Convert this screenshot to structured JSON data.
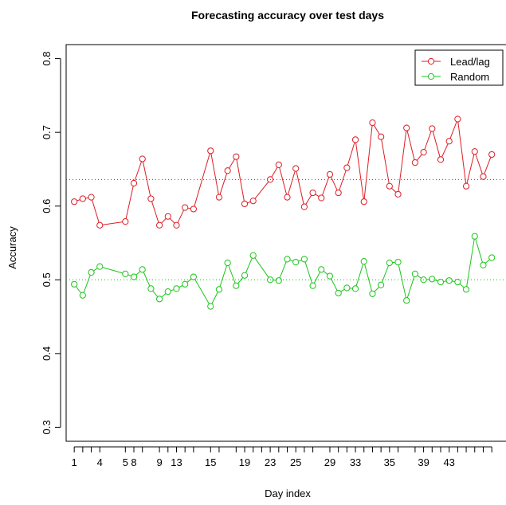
{
  "chart_data": {
    "type": "line",
    "title": "Forecasting accuracy over test days",
    "xlabel": "Day index",
    "ylabel": "Accuracy",
    "ylim": [
      0.3,
      0.8
    ],
    "y_ticks": [
      0.3,
      0.4,
      0.5,
      0.6,
      0.7,
      0.8
    ],
    "x_tick_positions": [
      1,
      2,
      3,
      4,
      7,
      8,
      9,
      11,
      12,
      13,
      14,
      15,
      17,
      18,
      20,
      21,
      22,
      23,
      24,
      25,
      26,
      27,
      28,
      29,
      31,
      32,
      33,
      34,
      35,
      36,
      37,
      38,
      39,
      41,
      42,
      43,
      44,
      45,
      46,
      47,
      48,
      49,
      50
    ],
    "x_tick_labels": [
      {
        "x": 1,
        "label": "1"
      },
      {
        "x": 4,
        "label": "4"
      },
      {
        "x": 7,
        "label": "5"
      },
      {
        "x": 8,
        "label": "8"
      },
      {
        "x": 11,
        "label": "9"
      },
      {
        "x": 13,
        "label": "13"
      },
      {
        "x": 17,
        "label": "15"
      },
      {
        "x": 21,
        "label": "19"
      },
      {
        "x": 24,
        "label": "23"
      },
      {
        "x": 27,
        "label": "25"
      },
      {
        "x": 31,
        "label": "29"
      },
      {
        "x": 34,
        "label": "33"
      },
      {
        "x": 38,
        "label": "35"
      },
      {
        "x": 42,
        "label": "39"
      },
      {
        "x": 45,
        "label": "43"
      }
    ],
    "reference_lines": [
      {
        "y": 0.636,
        "color": "#FF0000"
      },
      {
        "y": 0.5,
        "color": "#00CD00"
      }
    ],
    "legend": {
      "position": "top-right"
    },
    "series": [
      {
        "name": "Lead/lag",
        "color": "#DF1C24",
        "x": [
          1,
          2,
          3,
          4,
          7,
          8,
          9,
          10,
          11,
          12,
          13,
          14,
          15,
          17,
          18,
          19,
          20,
          21,
          22,
          24,
          25,
          26,
          27,
          28,
          29,
          30,
          31,
          32,
          33,
          34,
          35,
          36,
          37,
          38,
          39,
          40,
          41,
          42,
          43,
          44,
          45,
          46,
          47,
          48,
          49,
          50
        ],
        "y": [
          0.606,
          0.61,
          0.612,
          0.574,
          0.579,
          0.631,
          0.664,
          0.61,
          0.574,
          0.586,
          0.574,
          0.598,
          0.596,
          0.675,
          0.612,
          0.648,
          0.667,
          0.603,
          0.607,
          0.636,
          0.656,
          0.612,
          0.651,
          0.599,
          0.618,
          0.611,
          0.643,
          0.618,
          0.652,
          0.69,
          0.606,
          0.713,
          0.694,
          0.627,
          0.616,
          0.706,
          0.659,
          0.673,
          0.705,
          0.663,
          0.688,
          0.718,
          0.627,
          0.674,
          0.64,
          0.67
        ]
      },
      {
        "name": "Random",
        "color": "#1BC51B",
        "x": [
          1,
          2,
          3,
          4,
          7,
          8,
          9,
          10,
          11,
          12,
          13,
          14,
          15,
          17,
          18,
          19,
          20,
          21,
          22,
          24,
          25,
          26,
          27,
          28,
          29,
          30,
          31,
          32,
          33,
          34,
          35,
          36,
          37,
          38,
          39,
          40,
          41,
          42,
          43,
          44,
          45,
          46,
          47,
          48,
          49,
          50
        ],
        "y": [
          0.494,
          0.479,
          0.51,
          0.518,
          0.508,
          0.504,
          0.514,
          0.488,
          0.474,
          0.484,
          0.488,
          0.494,
          0.504,
          0.464,
          0.487,
          0.523,
          0.492,
          0.506,
          0.533,
          0.5,
          0.499,
          0.528,
          0.524,
          0.528,
          0.492,
          0.514,
          0.505,
          0.482,
          0.489,
          0.488,
          0.525,
          0.481,
          0.493,
          0.523,
          0.524,
          0.472,
          0.508,
          0.5,
          0.501,
          0.497,
          0.499,
          0.497,
          0.487,
          0.559,
          0.52,
          0.53
        ]
      }
    ]
  }
}
